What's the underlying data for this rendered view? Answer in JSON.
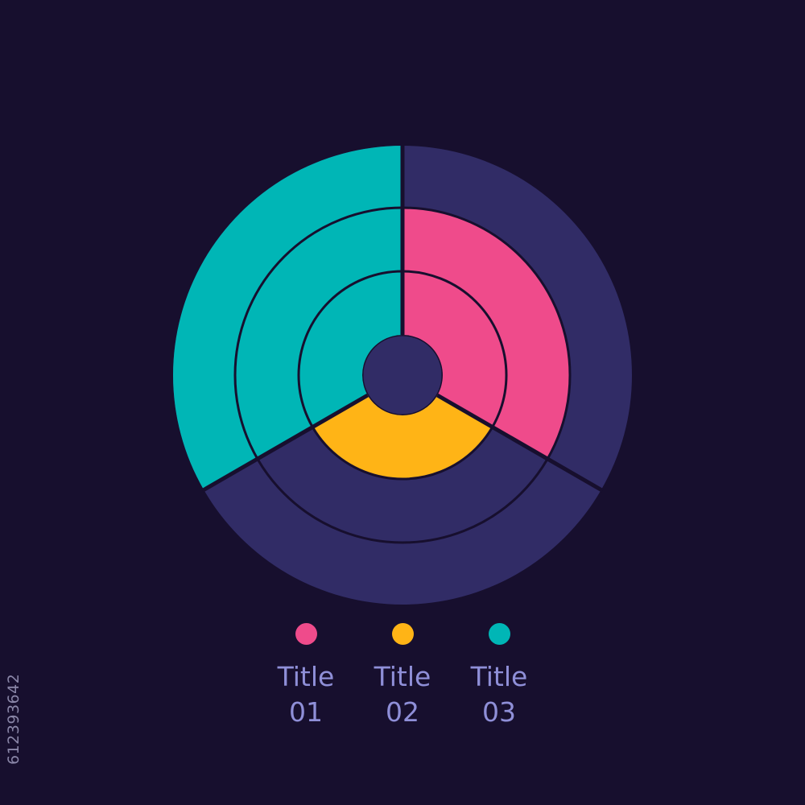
{
  "colors": {
    "background": "#170f2e",
    "empty_segment": "#312c66",
    "separator": "#170f2e"
  },
  "chart_data": {
    "type": "radial-bar",
    "title": "",
    "rings": 4,
    "series": [
      {
        "name": "Title 01",
        "label_line1": "Title",
        "label_line2": "01",
        "color": "#ef4b8b",
        "filled_rings": 3,
        "start_angle": 0,
        "end_angle": 120
      },
      {
        "name": "Title 02",
        "label_line1": "Title",
        "label_line2": "02",
        "color": "#ffb416",
        "filled_rings": 2,
        "start_angle": 120,
        "end_angle": 240
      },
      {
        "name": "Title 03",
        "label_line1": "Title",
        "label_line2": "03",
        "color": "#00b6b6",
        "filled_rings": 4,
        "start_angle": 240,
        "end_angle": 360
      }
    ],
    "legend_position": "bottom"
  },
  "watermark": {
    "id_text": "612393642"
  }
}
